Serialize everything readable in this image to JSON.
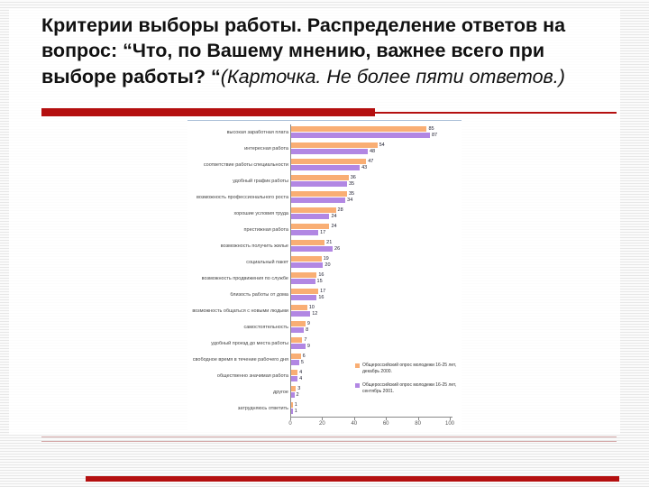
{
  "slide": {
    "title_bold": "Критерии выборы работы. Распределение ответов на вопрос: “Что, по Вашему мнению, важнее всего при выборе работы? “",
    "title_italic": "(Карточка. Не более пяти ответов.)"
  },
  "colors": {
    "accent_red": "#b40f0f",
    "series_2000": "#f9ae74",
    "series_2001": "#b287e3",
    "axis": "#888888"
  },
  "chart_data": {
    "type": "bar",
    "orientation": "horizontal",
    "title": "",
    "xlabel": "",
    "ylabel": "",
    "xlim": [
      0,
      100
    ],
    "x_ticks": [
      0,
      20,
      40,
      60,
      80,
      100
    ],
    "grid": false,
    "legend_position": "bottom-right",
    "categories": [
      "высокая заработная плата",
      "интересная работа",
      "соответствие работы специальности",
      "удобный график работы",
      "возможность профессионального роста",
      "хорошие условия труда",
      "престижная работа",
      "возможность получить жилье",
      "социальный пакет",
      "возможность продвижения по службе",
      "близость работы от дома",
      "возможность общаться с новыми людьми",
      "самостоятельность",
      "удобный проезд до места работы",
      "свободное время в течение рабочего дня",
      "общественно значимая работа",
      "другое",
      "затрудняюсь ответить"
    ],
    "series": [
      {
        "name": "Общероссийский опрос молодежи 16-25 лет, декабрь 2000.",
        "color": "#f9ae74",
        "values": [
          85,
          54,
          47,
          36,
          35,
          28,
          24,
          21,
          19,
          16,
          17,
          10,
          9,
          7,
          6,
          4,
          3,
          1
        ]
      },
      {
        "name": "Общероссийский опрос молодежи 16-25 лет, сентябрь 2001.",
        "color": "#b287e3",
        "values": [
          87,
          48,
          43,
          35,
          34,
          24,
          17,
          26,
          20,
          15,
          16,
          12,
          8,
          9,
          5,
          4,
          2,
          1
        ]
      }
    ]
  }
}
